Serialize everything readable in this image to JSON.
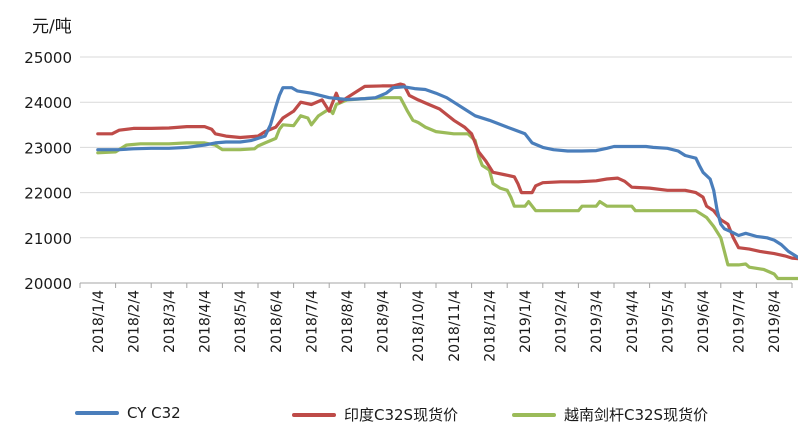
{
  "chart_data": {
    "type": "line",
    "unit_label": "元/吨",
    "ylim": [
      20000,
      25000
    ],
    "yticks": [
      "25000",
      "24000",
      "23000",
      "22000",
      "21000",
      "20000"
    ],
    "x_labels": [
      "2018/1/4",
      "2018/2/4",
      "2018/3/4",
      "2018/4/4",
      "2018/5/4",
      "2018/6/4",
      "2018/7/4",
      "2018/8/4",
      "2018/9/4",
      "2018/10/4",
      "2018/11/4",
      "2018/12/4",
      "2019/1/4",
      "2019/2/4",
      "2019/3/4",
      "2019/4/4",
      "2019/5/4",
      "2019/6/4",
      "2019/7/4",
      "2019/8/4"
    ],
    "grid": "horizontal",
    "legend_position": "bottom",
    "series": [
      {
        "name": "CY C32",
        "color": "#4a7ebb",
        "points": [
          [
            0.0,
            22950
          ],
          [
            0.6,
            22950
          ],
          [
            1.0,
            22970
          ],
          [
            1.5,
            22980
          ],
          [
            2.0,
            22980
          ],
          [
            2.5,
            23000
          ],
          [
            3.0,
            23050
          ],
          [
            3.3,
            23100
          ],
          [
            3.6,
            23120
          ],
          [
            4.0,
            23120
          ],
          [
            4.3,
            23150
          ],
          [
            4.5,
            23200
          ],
          [
            4.7,
            23250
          ],
          [
            4.85,
            23500
          ],
          [
            5.0,
            23900
          ],
          [
            5.1,
            24150
          ],
          [
            5.2,
            24320
          ],
          [
            5.45,
            24320
          ],
          [
            5.6,
            24250
          ],
          [
            6.0,
            24200
          ],
          [
            6.5,
            24100
          ],
          [
            7.0,
            24060
          ],
          [
            7.5,
            24080
          ],
          [
            7.8,
            24100
          ],
          [
            8.1,
            24200
          ],
          [
            8.3,
            24320
          ],
          [
            8.6,
            24340
          ],
          [
            8.9,
            24300
          ],
          [
            9.2,
            24280
          ],
          [
            9.5,
            24200
          ],
          [
            9.8,
            24100
          ],
          [
            10.0,
            24000
          ],
          [
            10.3,
            23850
          ],
          [
            10.6,
            23700
          ],
          [
            11.0,
            23600
          ],
          [
            11.5,
            23450
          ],
          [
            12.0,
            23300
          ],
          [
            12.2,
            23100
          ],
          [
            12.5,
            23000
          ],
          [
            12.8,
            22950
          ],
          [
            13.2,
            22920
          ],
          [
            13.6,
            22920
          ],
          [
            14.0,
            22930
          ],
          [
            14.3,
            22980
          ],
          [
            14.5,
            23020
          ],
          [
            15.0,
            23020
          ],
          [
            15.4,
            23020
          ],
          [
            15.6,
            23000
          ],
          [
            16.0,
            22980
          ],
          [
            16.3,
            22920
          ],
          [
            16.5,
            22820
          ],
          [
            16.8,
            22760
          ],
          [
            16.9,
            22600
          ],
          [
            17.0,
            22450
          ],
          [
            17.2,
            22300
          ],
          [
            17.3,
            22050
          ],
          [
            17.4,
            21600
          ],
          [
            17.5,
            21300
          ],
          [
            17.6,
            21200
          ],
          [
            17.8,
            21130
          ],
          [
            18.0,
            21050
          ],
          [
            18.2,
            21100
          ],
          [
            18.5,
            21030
          ],
          [
            18.8,
            21000
          ],
          [
            19.0,
            20950
          ],
          [
            19.2,
            20850
          ],
          [
            19.4,
            20700
          ],
          [
            19.6,
            20600
          ],
          [
            19.8,
            20500
          ],
          [
            19.92,
            20480
          ],
          [
            19.97,
            20350
          ]
        ]
      },
      {
        "name": "印度C32S现货价",
        "color": "#be4b48",
        "points": [
          [
            0.0,
            23300
          ],
          [
            0.4,
            23300
          ],
          [
            0.6,
            23380
          ],
          [
            1.0,
            23420
          ],
          [
            1.5,
            23420
          ],
          [
            2.0,
            23430
          ],
          [
            2.5,
            23460
          ],
          [
            3.0,
            23460
          ],
          [
            3.2,
            23400
          ],
          [
            3.3,
            23300
          ],
          [
            3.6,
            23250
          ],
          [
            4.0,
            23220
          ],
          [
            4.5,
            23250
          ],
          [
            4.7,
            23350
          ],
          [
            5.0,
            23450
          ],
          [
            5.2,
            23650
          ],
          [
            5.5,
            23800
          ],
          [
            5.7,
            24000
          ],
          [
            6.0,
            23950
          ],
          [
            6.3,
            24050
          ],
          [
            6.5,
            23800
          ],
          [
            6.7,
            24200
          ],
          [
            6.8,
            24000
          ],
          [
            7.0,
            24100
          ],
          [
            7.3,
            24250
          ],
          [
            7.5,
            24350
          ],
          [
            8.0,
            24360
          ],
          [
            8.3,
            24360
          ],
          [
            8.5,
            24400
          ],
          [
            8.6,
            24380
          ],
          [
            8.75,
            24150
          ],
          [
            9.0,
            24050
          ],
          [
            9.3,
            23950
          ],
          [
            9.6,
            23850
          ],
          [
            10.0,
            23600
          ],
          [
            10.3,
            23450
          ],
          [
            10.5,
            23300
          ],
          [
            10.7,
            22900
          ],
          [
            10.9,
            22700
          ],
          [
            11.1,
            22450
          ],
          [
            11.4,
            22400
          ],
          [
            11.7,
            22350
          ],
          [
            11.8,
            22200
          ],
          [
            11.9,
            22000
          ],
          [
            12.2,
            22000
          ],
          [
            12.3,
            22150
          ],
          [
            12.5,
            22220
          ],
          [
            13.0,
            22240
          ],
          [
            13.5,
            22240
          ],
          [
            14.0,
            22260
          ],
          [
            14.3,
            22300
          ],
          [
            14.6,
            22320
          ],
          [
            14.8,
            22250
          ],
          [
            15.0,
            22120
          ],
          [
            15.5,
            22100
          ],
          [
            16.0,
            22050
          ],
          [
            16.5,
            22050
          ],
          [
            16.8,
            22000
          ],
          [
            17.0,
            21900
          ],
          [
            17.1,
            21700
          ],
          [
            17.3,
            21600
          ],
          [
            17.5,
            21400
          ],
          [
            17.7,
            21300
          ],
          [
            17.85,
            21000
          ],
          [
            18.0,
            20780
          ],
          [
            18.3,
            20750
          ],
          [
            18.6,
            20700
          ],
          [
            19.0,
            20650
          ],
          [
            19.3,
            20600
          ],
          [
            19.5,
            20550
          ],
          [
            19.97,
            20520
          ]
        ]
      },
      {
        "name": "越南剑杆C32S现货价",
        "color": "#9bbb59",
        "points": [
          [
            0.0,
            22880
          ],
          [
            0.5,
            22900
          ],
          [
            0.8,
            23050
          ],
          [
            1.2,
            23080
          ],
          [
            1.5,
            23080
          ],
          [
            2.0,
            23080
          ],
          [
            2.5,
            23100
          ],
          [
            3.0,
            23100
          ],
          [
            3.3,
            23050
          ],
          [
            3.5,
            22950
          ],
          [
            4.0,
            22950
          ],
          [
            4.4,
            22970
          ],
          [
            4.5,
            23030
          ],
          [
            4.7,
            23100
          ],
          [
            5.0,
            23200
          ],
          [
            5.1,
            23400
          ],
          [
            5.2,
            23500
          ],
          [
            5.5,
            23480
          ],
          [
            5.7,
            23700
          ],
          [
            5.9,
            23650
          ],
          [
            6.0,
            23500
          ],
          [
            6.2,
            23700
          ],
          [
            6.5,
            23850
          ],
          [
            6.6,
            23750
          ],
          [
            6.7,
            23950
          ],
          [
            7.0,
            24050
          ],
          [
            7.5,
            24080
          ],
          [
            8.0,
            24100
          ],
          [
            8.5,
            24100
          ],
          [
            8.6,
            23950
          ],
          [
            8.7,
            23800
          ],
          [
            8.85,
            23600
          ],
          [
            9.0,
            23550
          ],
          [
            9.2,
            23450
          ],
          [
            9.5,
            23350
          ],
          [
            10.0,
            23300
          ],
          [
            10.4,
            23300
          ],
          [
            10.6,
            23150
          ],
          [
            10.7,
            22800
          ],
          [
            10.8,
            22600
          ],
          [
            11.0,
            22500
          ],
          [
            11.1,
            22200
          ],
          [
            11.3,
            22100
          ],
          [
            11.5,
            22050
          ],
          [
            11.6,
            21900
          ],
          [
            11.7,
            21700
          ],
          [
            12.0,
            21700
          ],
          [
            12.1,
            21800
          ],
          [
            12.3,
            21600
          ],
          [
            13.0,
            21600
          ],
          [
            13.5,
            21600
          ],
          [
            13.6,
            21700
          ],
          [
            14.0,
            21700
          ],
          [
            14.1,
            21800
          ],
          [
            14.3,
            21700
          ],
          [
            15.0,
            21700
          ],
          [
            15.1,
            21600
          ],
          [
            15.5,
            21600
          ],
          [
            16.0,
            21600
          ],
          [
            16.5,
            21600
          ],
          [
            16.8,
            21600
          ],
          [
            17.0,
            21500
          ],
          [
            17.1,
            21450
          ],
          [
            17.3,
            21250
          ],
          [
            17.5,
            21000
          ],
          [
            17.6,
            20700
          ],
          [
            17.7,
            20400
          ],
          [
            18.0,
            20400
          ],
          [
            18.2,
            20420
          ],
          [
            18.3,
            20350
          ],
          [
            18.7,
            20300
          ],
          [
            19.0,
            20200
          ],
          [
            19.1,
            20100
          ],
          [
            19.7,
            20100
          ],
          [
            19.8,
            20020
          ],
          [
            19.97,
            20000
          ]
        ]
      }
    ]
  }
}
